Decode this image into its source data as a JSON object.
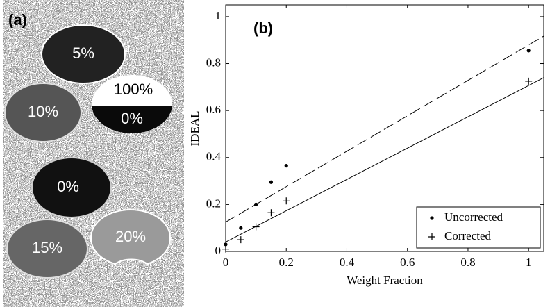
{
  "image_panel": {
    "label": "(a)",
    "regions": [
      "5%",
      "100%",
      "0%",
      "10%",
      "0%",
      "15%",
      "20%"
    ]
  },
  "chart_data": {
    "type": "scatter",
    "panel_label": "(b)",
    "x_label": "Weight Fraction",
    "y_label": "IDEAL",
    "xlim": [
      0,
      1.05
    ],
    "ylim": [
      0,
      1.05
    ],
    "xticks": [
      0,
      0.2,
      0.4,
      0.6,
      0.8,
      1
    ],
    "yticks": [
      0,
      0.2,
      0.4,
      0.6,
      0.8,
      1
    ],
    "legend": "lower right",
    "series": [
      {
        "name": "Uncorrected",
        "marker": "dot",
        "color": "#000000",
        "x": [
          0,
          0.05,
          0.1,
          0.15,
          0.2,
          1
        ],
        "values": [
          0.03,
          0.1,
          0.2,
          0.295,
          0.365,
          0.855
        ]
      },
      {
        "name": "Corrected",
        "marker": "plus",
        "color": "#000000",
        "x": [
          0,
          0.05,
          0.1,
          0.15,
          0.2,
          1
        ],
        "values": [
          0.01,
          0.05,
          0.105,
          0.165,
          0.215,
          0.725
        ]
      }
    ],
    "fit_lines": [
      {
        "style": "dashed",
        "color": "#000000",
        "x": [
          0,
          1.05
        ],
        "values": [
          0.125,
          0.917
        ]
      },
      {
        "style": "solid",
        "color": "#000000",
        "x": [
          0,
          1.05
        ],
        "values": [
          0.04,
          0.74
        ]
      }
    ]
  }
}
